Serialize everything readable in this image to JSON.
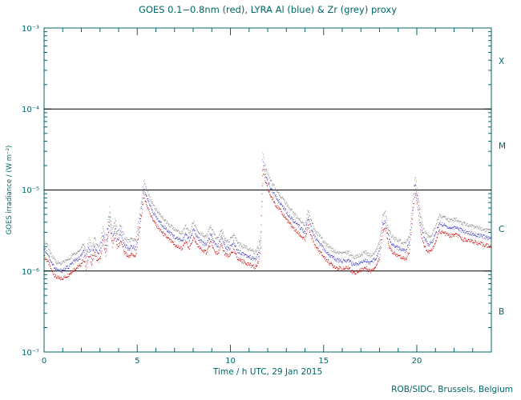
{
  "chart_data": {
    "type": "scatter",
    "title": "GOES 0.1−0.8nm (red), LYRA Al (blue) & Zr (grey) proxy",
    "xlabel": "Time / h UTC, 29 Jan 2015",
    "ylabel": "GOES irradiance / (W m⁻²)",
    "credit": "ROB/SIDC, Brussels, Belgium",
    "xlim": [
      0,
      24
    ],
    "ylim": [
      1e-07,
      0.001
    ],
    "ylog": true,
    "grid": false,
    "xticks_major": [
      0,
      5,
      10,
      15,
      20
    ],
    "xtick_labels": [
      "0",
      "5",
      "10",
      "15",
      "20"
    ],
    "ytick_exponents": [
      -3,
      -4,
      -5,
      -6,
      -7
    ],
    "ytick_labels": [
      "10⁻³",
      "10⁻⁴",
      "10⁻⁵",
      "10⁻⁶",
      "10⁻⁷"
    ],
    "hlines": [
      0.0001,
      1e-05,
      1e-06
    ],
    "class_labels": [
      "X",
      "M",
      "C",
      "B"
    ],
    "colors": {
      "background": "#ffffff",
      "axis": "#006666",
      "hline": "#000000",
      "goes_red": "#cc0000",
      "lyra_al_blue": "#3333bb",
      "lyra_zr_grey": "#888888"
    },
    "series": [
      {
        "name": "GOES 0.1-0.8nm",
        "color": "#cc0000",
        "points": [
          [
            0.0,
            1.5e-06
          ],
          [
            0.2,
            1.3e-06
          ],
          [
            0.4,
            1e-06
          ],
          [
            0.6,
            8.5e-07
          ],
          [
            0.8,
            8e-07
          ],
          [
            1.0,
            8.2e-07
          ],
          [
            1.3,
            9e-07
          ],
          [
            1.6,
            1.05e-06
          ],
          [
            1.9,
            1.15e-06
          ],
          [
            2.1,
            1.4e-06
          ],
          [
            2.25,
            1.1e-06
          ],
          [
            2.4,
            1.6e-06
          ],
          [
            2.55,
            1.2e-06
          ],
          [
            2.7,
            1.7e-06
          ],
          [
            2.85,
            1.3e-06
          ],
          [
            3.0,
            1.4e-06
          ],
          [
            3.15,
            2.3e-06
          ],
          [
            3.3,
            1.6e-06
          ],
          [
            3.5,
            3.8e-06
          ],
          [
            3.65,
            2e-06
          ],
          [
            3.8,
            2.8e-06
          ],
          [
            3.95,
            1.9e-06
          ],
          [
            4.1,
            2.4e-06
          ],
          [
            4.3,
            1.7e-06
          ],
          [
            4.5,
            1.5e-06
          ],
          [
            4.7,
            1.6e-06
          ],
          [
            4.9,
            1.5e-06
          ],
          [
            5.05,
            2.5e-06
          ],
          [
            5.2,
            4.5e-06
          ],
          [
            5.35,
            8.5e-06
          ],
          [
            5.5,
            6.5e-06
          ],
          [
            5.7,
            5e-06
          ],
          [
            5.9,
            4e-06
          ],
          [
            6.2,
            3.2e-06
          ],
          [
            6.5,
            2.7e-06
          ],
          [
            6.8,
            2.3e-06
          ],
          [
            7.1,
            2e-06
          ],
          [
            7.4,
            1.9e-06
          ],
          [
            7.6,
            2.3e-06
          ],
          [
            7.8,
            1.9e-06
          ],
          [
            8.0,
            2.6e-06
          ],
          [
            8.2,
            2.1e-06
          ],
          [
            8.45,
            1.8e-06
          ],
          [
            8.7,
            1.7e-06
          ],
          [
            8.95,
            2.3e-06
          ],
          [
            9.1,
            1.8e-06
          ],
          [
            9.3,
            1.6e-06
          ],
          [
            9.5,
            2.1e-06
          ],
          [
            9.7,
            1.6e-06
          ],
          [
            9.9,
            1.5e-06
          ],
          [
            10.15,
            1.8e-06
          ],
          [
            10.4,
            1.4e-06
          ],
          [
            10.7,
            1.3e-06
          ],
          [
            11.0,
            1.2e-06
          ],
          [
            11.3,
            1.1e-06
          ],
          [
            11.5,
            1.3e-06
          ],
          [
            11.62,
            2e-06
          ],
          [
            11.72,
            1.8e-05
          ],
          [
            11.85,
            1.3e-05
          ],
          [
            12.0,
            1e-05
          ],
          [
            12.2,
            8e-06
          ],
          [
            12.5,
            6.2e-06
          ],
          [
            12.8,
            5e-06
          ],
          [
            13.1,
            4e-06
          ],
          [
            13.4,
            3.3e-06
          ],
          [
            13.7,
            2.8e-06
          ],
          [
            14.0,
            2.4e-06
          ],
          [
            14.15,
            3.6e-06
          ],
          [
            14.3,
            2.8e-06
          ],
          [
            14.5,
            2.1e-06
          ],
          [
            14.8,
            1.7e-06
          ],
          [
            15.1,
            1.4e-06
          ],
          [
            15.4,
            1.2e-06
          ],
          [
            15.7,
            1.1e-06
          ],
          [
            16.0,
            1.05e-06
          ],
          [
            16.3,
            1.1e-06
          ],
          [
            16.6,
            9.5e-07
          ],
          [
            16.9,
            1e-06
          ],
          [
            17.2,
            1.1e-06
          ],
          [
            17.5,
            1e-06
          ],
          [
            17.8,
            1.15e-06
          ],
          [
            18.0,
            1.5e-06
          ],
          [
            18.15,
            3e-06
          ],
          [
            18.3,
            3.4e-06
          ],
          [
            18.45,
            2.2e-06
          ],
          [
            18.6,
            1.8e-06
          ],
          [
            18.8,
            1.6e-06
          ],
          [
            19.1,
            1.5e-06
          ],
          [
            19.4,
            1.4e-06
          ],
          [
            19.6,
            1.8e-06
          ],
          [
            19.75,
            4.5e-06
          ],
          [
            19.9,
            9.5e-06
          ],
          [
            20.05,
            6e-06
          ],
          [
            20.2,
            3e-06
          ],
          [
            20.4,
            2e-06
          ],
          [
            20.6,
            1.7e-06
          ],
          [
            20.8,
            1.8e-06
          ],
          [
            21.0,
            2.3e-06
          ],
          [
            21.2,
            3.1e-06
          ],
          [
            21.5,
            2.9e-06
          ],
          [
            21.8,
            2.7e-06
          ],
          [
            22.1,
            2.8e-06
          ],
          [
            22.4,
            2.5e-06
          ],
          [
            22.7,
            2.4e-06
          ],
          [
            23.0,
            2.3e-06
          ],
          [
            23.3,
            2.2e-06
          ],
          [
            23.6,
            2.1e-06
          ],
          [
            24.0,
            2e-06
          ]
        ]
      },
      {
        "name": "LYRA Al proxy",
        "color": "#3333bb",
        "factor": 1.25
      },
      {
        "name": "LYRA Zr proxy",
        "color": "#888888",
        "factor": 1.55
      }
    ]
  }
}
